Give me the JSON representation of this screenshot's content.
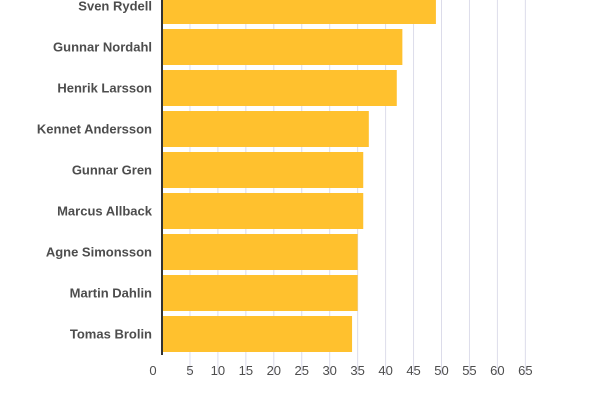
{
  "chart_data": {
    "type": "bar",
    "orientation": "horizontal",
    "categories": [
      "Sven Rydell",
      "Gunnar Nordahl",
      "Henrik Larsson",
      "Kennet Andersson",
      "Gunnar Gren",
      "Marcus Allback",
      "Agne Simonsson",
      "Martin Dahlin",
      "Tomas Brolin"
    ],
    "values": [
      49,
      43,
      42,
      37,
      36,
      36,
      35,
      35,
      34
    ],
    "xlim": [
      0,
      65
    ],
    "xticks": [
      0,
      5,
      10,
      15,
      20,
      25,
      30,
      35,
      40,
      45,
      50,
      55,
      60,
      65
    ],
    "grid": true,
    "bar_color": "#ffc12e",
    "grid_color": "#dcdcea",
    "axis_color": "#333333"
  }
}
